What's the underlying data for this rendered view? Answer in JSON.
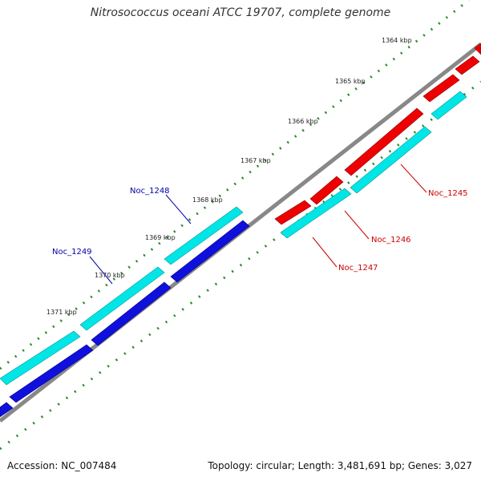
{
  "title": "Nitrosococcus oceani ATCC 19707, complete genome",
  "footer": {
    "accession": "Accession: NC_007484",
    "summary": "Topology: circular; Length: 3,481,691 bp; Genes: 3,027"
  },
  "colors": {
    "forward_cds": "#1e1edc",
    "forward_cds_other": "#00e0e0",
    "reverse_cds": "#e00000",
    "reverse_cds_other": "#00e0e0",
    "backbone": "#777777",
    "tick": "#2a8a2a",
    "forward_label": "#0000aa",
    "reverse_label": "#cc0000"
  },
  "ruler": [
    "1364 kbp",
    "1365 kbp",
    "1366 kbp",
    "1367 kbp",
    "1368 kbp",
    "1369 kbp",
    "1370 kbp",
    "1371 kbp"
  ],
  "genes": [
    {
      "name": "Noc_1245",
      "strand": "reverse"
    },
    {
      "name": "Noc_1246",
      "strand": "reverse"
    },
    {
      "name": "Noc_1247",
      "strand": "reverse"
    },
    {
      "name": "Noc_1248",
      "strand": "forward"
    },
    {
      "name": "Noc_1249",
      "strand": "forward"
    }
  ]
}
